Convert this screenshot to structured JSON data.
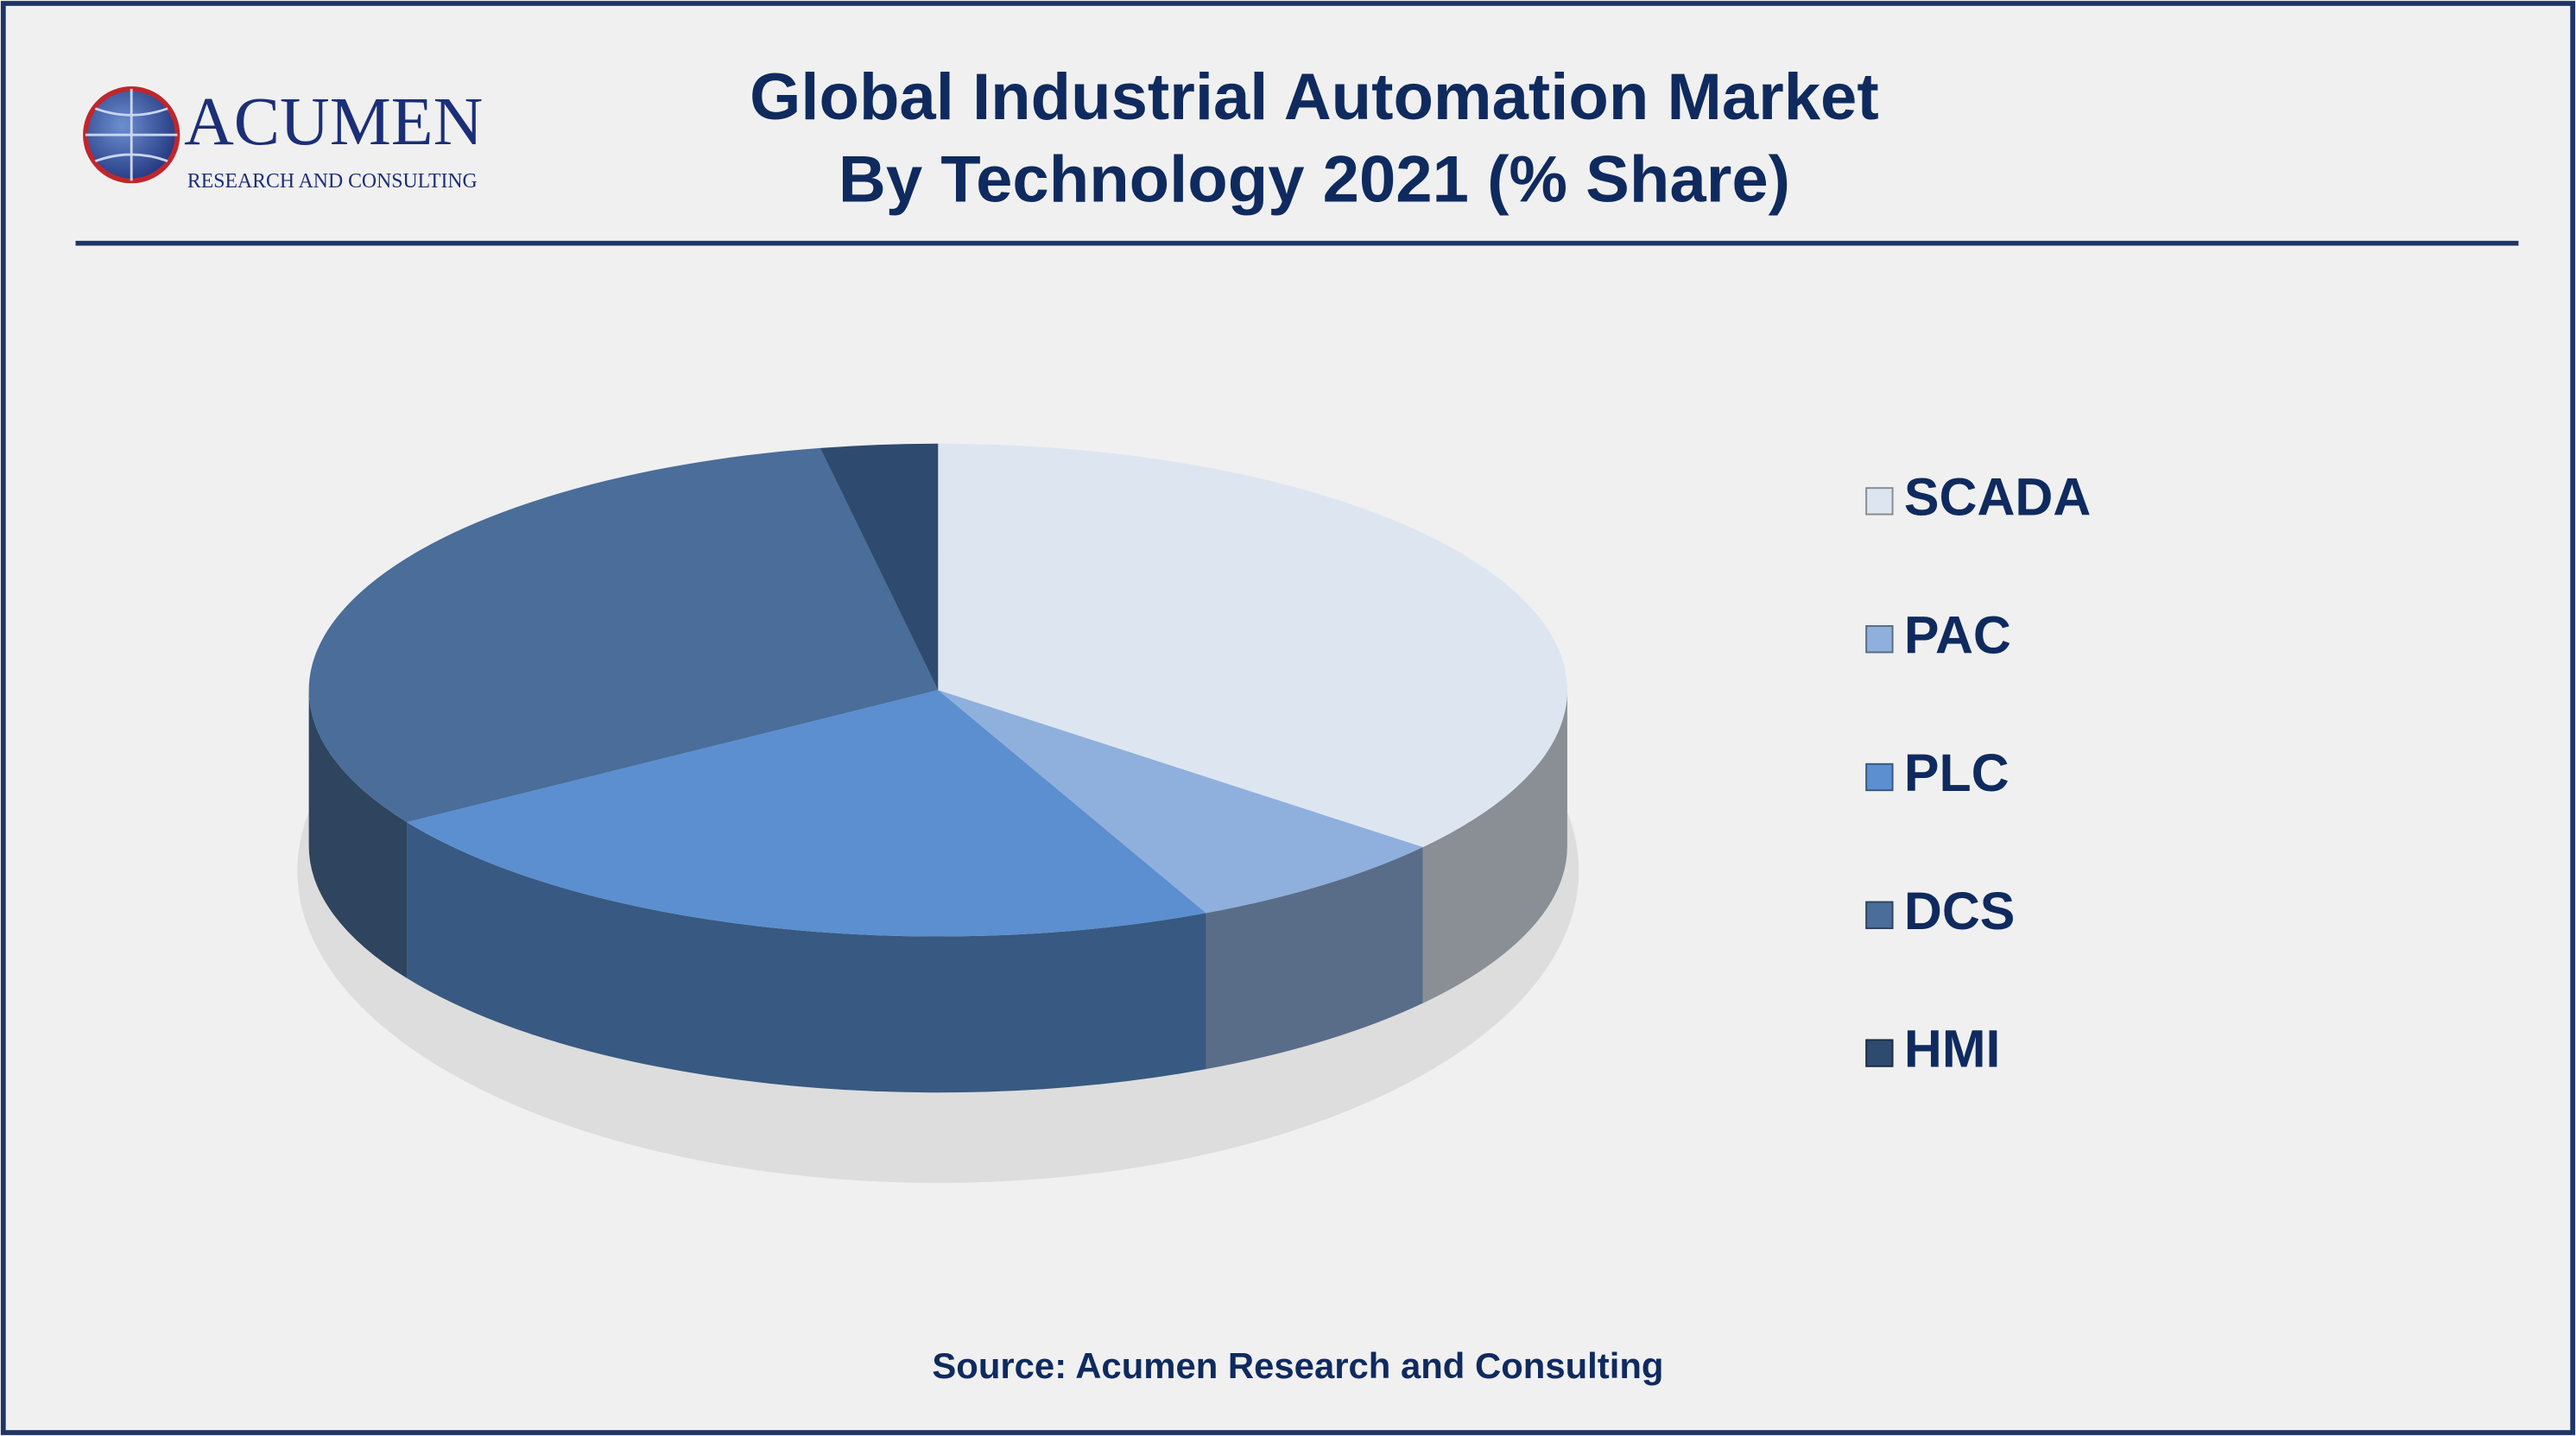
{
  "chart_data": {
    "type": "pie",
    "title": [
      "Global Industrial Automation Market",
      "By Technology 2021 (% Share)"
    ],
    "categories": [
      "SCADA",
      "PAC",
      "PLC",
      "DCS",
      "HMI"
    ],
    "values": [
      36,
      7,
      23,
      31,
      3
    ],
    "colors": [
      "#dde6f0",
      "#8fb0dd",
      "#5b8fd0",
      "#4a6d9a",
      "#2e4a6e"
    ],
    "legend": "right",
    "source": "Source: Acumen Research and Consulting"
  },
  "logo": {
    "name": "ACUMEN",
    "tagline": "RESEARCH AND CONSULTING"
  }
}
